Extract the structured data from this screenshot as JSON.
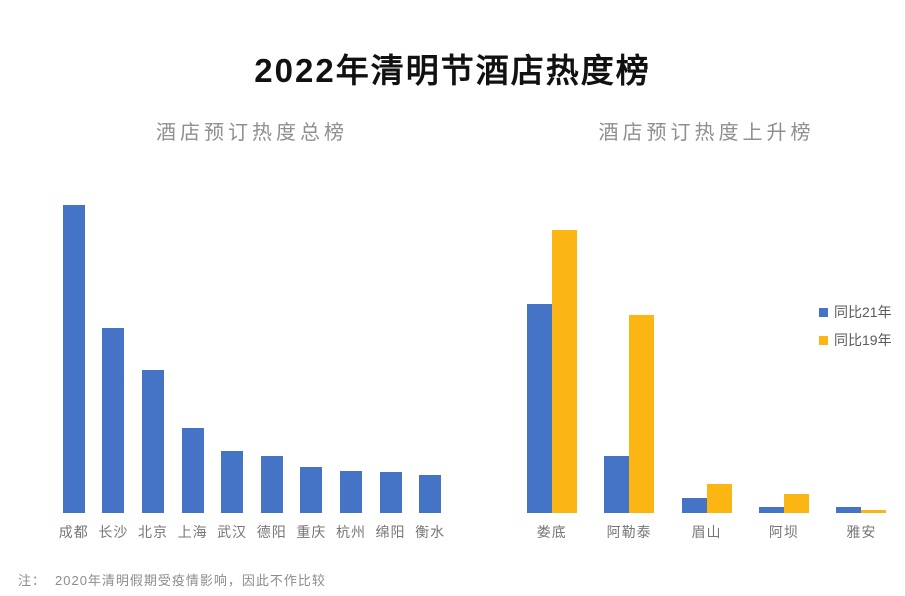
{
  "title": "2022年清明节酒店热度榜",
  "note": {
    "prefix": "注：",
    "text": "2020年清明假期受疫情影响，因此不作比较"
  },
  "colors": {
    "series_blue": "#4574C6",
    "series_gold": "#FBB614",
    "title_text": "#111111",
    "subtitle_text": "#8f8f8f",
    "axis_label_text": "#767676",
    "legend_text": "#5a5a5a",
    "note_text": "#8c8c8c"
  },
  "chart_data": [
    {
      "type": "bar",
      "title": "酒店预订热度总榜",
      "categories": [
        "成都",
        "长沙",
        "北京",
        "上海",
        "武汉",
        "德阳",
        "重庆",
        "杭州",
        "绵阳",
        "衡水"
      ],
      "series": [
        {
          "name": "酒店预订热度",
          "color": "#4574C6",
          "values": [
            100,
            60,
            46.5,
            27.5,
            20,
            18.5,
            15,
            13.6,
            13.3,
            12.3
          ]
        }
      ],
      "xlabel": "",
      "ylabel": "",
      "ylim": [
        0,
        100
      ],
      "grid": false,
      "axis_lines": false,
      "legend_position": "none",
      "value_labels": false,
      "note": "相对热度值，按最高城市成都=100估读"
    },
    {
      "type": "bar",
      "title": "酒店预订热度上升榜",
      "categories": [
        "娄底",
        "阿勒泰",
        "眉山",
        "阿坝",
        "雅安"
      ],
      "series": [
        {
          "name": "同比21年",
          "color": "#4574C6",
          "values": [
            74,
            20,
            5.3,
            2.1,
            2.3
          ]
        },
        {
          "name": "同比19年",
          "color": "#FBB614",
          "values": [
            100,
            70,
            10.2,
            6.7,
            1.2
          ]
        }
      ],
      "xlabel": "",
      "ylabel": "",
      "ylim": [
        0,
        100
      ],
      "grid": false,
      "axis_lines": false,
      "legend_position": "right",
      "value_labels": false,
      "note": "相对升幅值，按娄底同比19年=100估读"
    }
  ]
}
